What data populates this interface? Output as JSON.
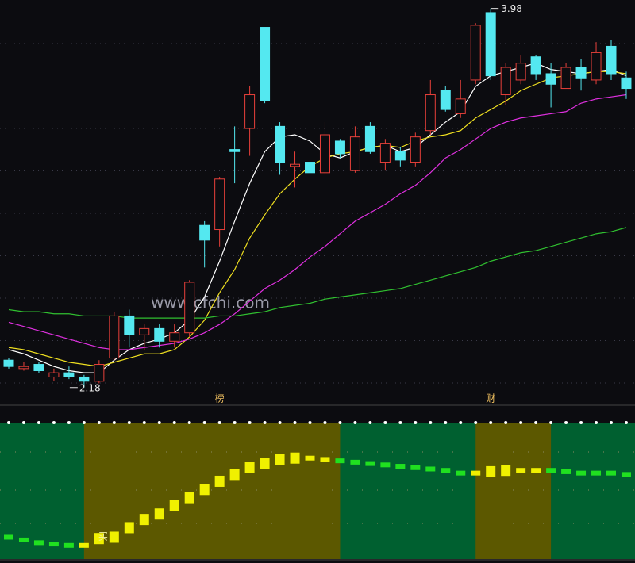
{
  "chart_data": [
    {
      "type": "candlestick",
      "ylim": [
        2.1,
        4.02
      ],
      "up_color": "#e8403a",
      "down_color": "#54e8f0",
      "grid": true,
      "open": [
        2.31,
        2.27,
        2.29,
        2.23,
        2.25,
        2.23,
        2.21,
        2.32,
        2.52,
        2.43,
        2.46,
        2.4,
        2.44,
        2.95,
        2.93,
        3.31,
        3.41,
        3.89,
        3.42,
        3.23,
        3.25,
        3.2,
        3.35,
        3.21,
        3.42,
        3.25,
        3.3,
        3.25,
        3.4,
        3.59,
        3.48,
        3.64,
        3.96,
        3.57,
        3.64,
        3.75,
        3.67,
        3.6,
        3.7,
        3.64,
        3.8,
        3.65
      ],
      "high": [
        2.32,
        2.3,
        2.3,
        2.27,
        2.28,
        2.24,
        2.31,
        2.54,
        2.55,
        2.48,
        2.48,
        2.48,
        2.69,
        2.97,
        3.18,
        3.42,
        3.61,
        3.89,
        3.44,
        3.3,
        3.34,
        3.44,
        3.36,
        3.42,
        3.44,
        3.36,
        3.32,
        3.39,
        3.64,
        3.61,
        3.64,
        3.91,
        3.98,
        3.72,
        3.76,
        3.76,
        3.72,
        3.72,
        3.74,
        3.82,
        3.83,
        3.68
      ],
      "low": [
        2.27,
        2.26,
        2.25,
        2.21,
        2.22,
        2.18,
        2.2,
        2.31,
        2.37,
        2.36,
        2.37,
        2.37,
        2.42,
        2.75,
        2.85,
        3.15,
        3.28,
        3.53,
        3.19,
        3.13,
        3.17,
        3.19,
        3.27,
        3.2,
        3.29,
        3.21,
        3.23,
        3.23,
        3.38,
        3.49,
        3.46,
        3.62,
        3.64,
        3.52,
        3.62,
        3.64,
        3.51,
        3.6,
        3.59,
        3.62,
        3.64,
        3.55
      ],
      "close": [
        2.28,
        2.28,
        2.26,
        2.25,
        2.23,
        2.21,
        2.29,
        2.52,
        2.43,
        2.46,
        2.4,
        2.44,
        2.68,
        2.88,
        3.17,
        3.3,
        3.57,
        3.54,
        3.25,
        3.24,
        3.2,
        3.38,
        3.29,
        3.37,
        3.3,
        3.34,
        3.26,
        3.37,
        3.57,
        3.5,
        3.55,
        3.9,
        3.66,
        3.7,
        3.72,
        3.67,
        3.62,
        3.7,
        3.65,
        3.77,
        3.67,
        3.6
      ],
      "lines": [
        {
          "color": "#ffffff",
          "values": [
            2.36,
            2.34,
            2.31,
            2.28,
            2.26,
            2.25,
            2.25,
            2.31,
            2.36,
            2.39,
            2.41,
            2.44,
            2.5,
            2.61,
            2.78,
            2.97,
            3.15,
            3.3,
            3.37,
            3.38,
            3.35,
            3.29,
            3.27,
            3.3,
            3.32,
            3.33,
            3.3,
            3.32,
            3.38,
            3.44,
            3.49,
            3.61,
            3.66,
            3.68,
            3.7,
            3.72,
            3.69,
            3.68,
            3.67,
            3.68,
            3.69,
            3.66
          ]
        },
        {
          "color": "#f0e020",
          "values": [
            2.37,
            2.36,
            2.34,
            2.32,
            2.3,
            2.29,
            2.28,
            2.3,
            2.32,
            2.34,
            2.34,
            2.36,
            2.42,
            2.5,
            2.63,
            2.74,
            2.89,
            3.0,
            3.1,
            3.17,
            3.23,
            3.27,
            3.29,
            3.3,
            3.32,
            3.33,
            3.32,
            3.35,
            3.37,
            3.38,
            3.4,
            3.46,
            3.5,
            3.54,
            3.59,
            3.62,
            3.65,
            3.66,
            3.67,
            3.68,
            3.68,
            3.67
          ]
        },
        {
          "color": "#e030e0",
          "values": [
            2.49,
            2.47,
            2.45,
            2.43,
            2.41,
            2.39,
            2.37,
            2.36,
            2.36,
            2.37,
            2.38,
            2.39,
            2.41,
            2.44,
            2.48,
            2.53,
            2.59,
            2.65,
            2.69,
            2.74,
            2.8,
            2.85,
            2.91,
            2.97,
            3.01,
            3.05,
            3.1,
            3.14,
            3.2,
            3.27,
            3.31,
            3.36,
            3.41,
            3.44,
            3.46,
            3.47,
            3.48,
            3.49,
            3.53,
            3.55,
            3.56,
            3.57
          ]
        },
        {
          "color": "#30c030",
          "values": [
            2.55,
            2.54,
            2.54,
            2.53,
            2.53,
            2.52,
            2.52,
            2.52,
            2.51,
            2.51,
            2.51,
            2.51,
            2.51,
            2.51,
            2.52,
            2.52,
            2.53,
            2.54,
            2.56,
            2.57,
            2.58,
            2.6,
            2.61,
            2.62,
            2.63,
            2.64,
            2.65,
            2.67,
            2.69,
            2.71,
            2.73,
            2.75,
            2.78,
            2.8,
            2.82,
            2.83,
            2.85,
            2.87,
            2.89,
            2.91,
            2.92,
            2.94
          ]
        }
      ],
      "watermark": "www.cfchi.com",
      "annotations": [
        {
          "text": "榜",
          "candle": 14
        },
        {
          "text": "财",
          "candle": 32
        }
      ]
    },
    {
      "type": "signal",
      "ylim": [
        0,
        100
      ],
      "values": [
        16,
        14,
        12,
        11,
        10,
        10,
        15,
        16,
        23,
        29,
        33,
        39,
        45,
        51,
        57,
        62,
        67,
        70,
        73,
        74,
        74,
        73,
        72,
        71,
        70,
        69,
        68,
        67,
        66,
        65,
        63,
        63,
        64,
        65,
        65,
        65,
        65,
        64,
        63,
        63,
        63,
        62
      ],
      "background": "#006030",
      "highlight_color": "#5c5800",
      "color": "#20e020",
      "highlight_mark_color": "#f0f000",
      "highlights": [
        [
          5,
          22
        ],
        [
          31,
          36
        ]
      ],
      "annotations": [
        {
          "text": "买",
          "candle": 6
        }
      ]
    }
  ]
}
